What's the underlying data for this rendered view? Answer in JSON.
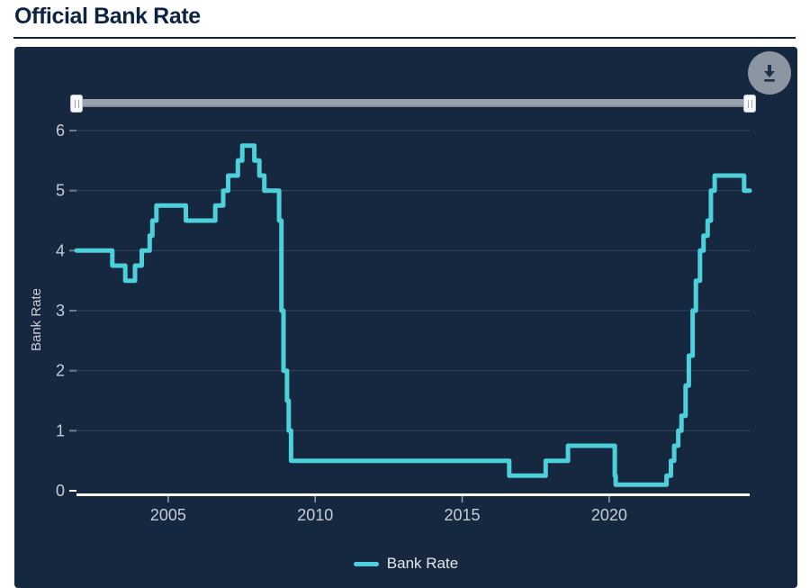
{
  "page": {
    "title": "Official Bank Rate"
  },
  "controls": {
    "download_icon": "download-arrow",
    "slider": {
      "left_handle_pos": "min",
      "right_handle_pos": "max"
    }
  },
  "colors": {
    "accent": "#4dd0d9",
    "card_bg": "#152840",
    "grid": "#33445e",
    "axis_text": "#c7cdd6",
    "axis_line": "#ffffff",
    "tick_mark": "#9aa4b2",
    "y_tick_mark": "#707c90",
    "title_text": "#0d2342",
    "slider_track": "#99a2ad",
    "download_bg": "#8c95a2",
    "download_glyph": "#1e3349",
    "legend_text": "#e4e7ec"
  },
  "chart_data": {
    "type": "line",
    "step": true,
    "title": "Official Bank Rate",
    "xlabel": "",
    "ylabel": "Bank Rate",
    "legend_position": "bottom",
    "grid": true,
    "xlim": [
      2001.88,
      2024.78
    ],
    "ylim": [
      0,
      6
    ],
    "xticks": [
      2005,
      2010,
      2015,
      2020
    ],
    "yticks": [
      0,
      1,
      2,
      3,
      4,
      5,
      6
    ],
    "series": [
      {
        "name": "Bank Rate",
        "color": "#4dd0d9",
        "points": [
          [
            2001.88,
            4.0
          ],
          [
            2003.1,
            3.75
          ],
          [
            2003.54,
            3.5
          ],
          [
            2003.87,
            3.75
          ],
          [
            2004.1,
            4.0
          ],
          [
            2004.37,
            4.25
          ],
          [
            2004.46,
            4.5
          ],
          [
            2004.6,
            4.75
          ],
          [
            2005.6,
            4.5
          ],
          [
            2006.6,
            4.75
          ],
          [
            2006.87,
            5.0
          ],
          [
            2007.04,
            5.25
          ],
          [
            2007.37,
            5.5
          ],
          [
            2007.52,
            5.75
          ],
          [
            2007.93,
            5.5
          ],
          [
            2008.1,
            5.25
          ],
          [
            2008.27,
            5.0
          ],
          [
            2008.77,
            4.5
          ],
          [
            2008.85,
            3.0
          ],
          [
            2008.92,
            2.0
          ],
          [
            2009.04,
            1.5
          ],
          [
            2009.1,
            1.0
          ],
          [
            2009.18,
            0.5
          ],
          [
            2016.6,
            0.25
          ],
          [
            2017.84,
            0.5
          ],
          [
            2018.6,
            0.75
          ],
          [
            2020.19,
            0.25
          ],
          [
            2020.22,
            0.1
          ],
          [
            2021.95,
            0.25
          ],
          [
            2022.1,
            0.5
          ],
          [
            2022.21,
            0.75
          ],
          [
            2022.35,
            1.0
          ],
          [
            2022.46,
            1.25
          ],
          [
            2022.6,
            1.75
          ],
          [
            2022.71,
            2.25
          ],
          [
            2022.84,
            3.0
          ],
          [
            2022.95,
            3.5
          ],
          [
            2023.09,
            4.0
          ],
          [
            2023.21,
            4.25
          ],
          [
            2023.35,
            4.5
          ],
          [
            2023.46,
            5.0
          ],
          [
            2023.59,
            5.25
          ],
          [
            2024.59,
            5.0
          ],
          [
            2024.78,
            5.0
          ]
        ]
      }
    ]
  },
  "legend": {
    "label": "Bank Rate"
  }
}
